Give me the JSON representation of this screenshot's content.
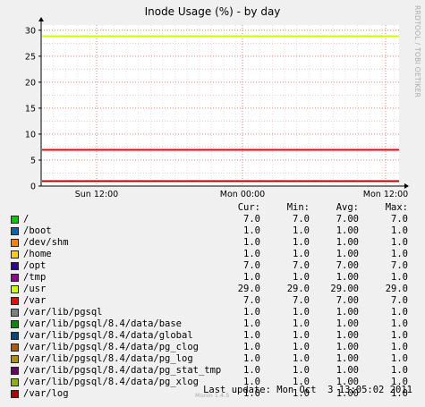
{
  "chart_data": {
    "type": "line",
    "title": "Inode Usage (%) - by day",
    "watermark": "RRDTOOL / TOBI OETIKER",
    "yticks": [
      0,
      5,
      10,
      15,
      20,
      25,
      30
    ],
    "ylim": [
      0,
      31
    ],
    "xticks": [
      "Sun 12:00",
      "Mon 00:00",
      "Mon 12:00"
    ],
    "grid": true,
    "columns": [
      "Cur:",
      "Min:",
      "Avg:",
      "Max:"
    ],
    "series": [
      {
        "name": "/",
        "color": "#00cc00",
        "cur": "7.0",
        "min": "7.0",
        "avg": "7.00",
        "max": "7.0",
        "value": 7.0
      },
      {
        "name": "/boot",
        "color": "#0066b3",
        "cur": "1.0",
        "min": "1.0",
        "avg": "1.00",
        "max": "1.0",
        "value": 1.0
      },
      {
        "name": "/dev/shm",
        "color": "#ff8000",
        "cur": "1.0",
        "min": "1.0",
        "avg": "1.00",
        "max": "1.0",
        "value": 1.0
      },
      {
        "name": "/home",
        "color": "#ffcc00",
        "cur": "1.0",
        "min": "1.0",
        "avg": "1.00",
        "max": "1.0",
        "value": 1.0
      },
      {
        "name": "/opt",
        "color": "#330099",
        "cur": "7.0",
        "min": "7.0",
        "avg": "7.00",
        "max": "7.0",
        "value": 7.0
      },
      {
        "name": "/tmp",
        "color": "#990099",
        "cur": "1.0",
        "min": "1.0",
        "avg": "1.00",
        "max": "1.0",
        "value": 1.0
      },
      {
        "name": "/usr",
        "color": "#ccff00",
        "cur": "29.0",
        "min": "29.0",
        "avg": "29.00",
        "max": "29.0",
        "value": 29.0
      },
      {
        "name": "/var",
        "color": "#ff0000",
        "cur": "7.0",
        "min": "7.0",
        "avg": "7.00",
        "max": "7.0",
        "value": 7.0
      },
      {
        "name": "/var/lib/pgsql",
        "color": "#808080",
        "cur": "1.0",
        "min": "1.0",
        "avg": "1.00",
        "max": "1.0",
        "value": 1.0
      },
      {
        "name": "/var/lib/pgsql/8.4/data/base",
        "color": "#008f00",
        "cur": "1.0",
        "min": "1.0",
        "avg": "1.00",
        "max": "1.0",
        "value": 1.0
      },
      {
        "name": "/var/lib/pgsql/8.4/data/global",
        "color": "#00487d",
        "cur": "1.0",
        "min": "1.0",
        "avg": "1.00",
        "max": "1.0",
        "value": 1.0
      },
      {
        "name": "/var/lib/pgsql/8.4/data/pg_clog",
        "color": "#b35a00",
        "cur": "1.0",
        "min": "1.0",
        "avg": "1.00",
        "max": "1.0",
        "value": 1.0
      },
      {
        "name": "/var/lib/pgsql/8.4/data/pg_log",
        "color": "#b38f00",
        "cur": "1.0",
        "min": "1.0",
        "avg": "1.00",
        "max": "1.0",
        "value": 1.0
      },
      {
        "name": "/var/lib/pgsql/8.4/data/pg_stat_tmp",
        "color": "#6b006b",
        "cur": "1.0",
        "min": "1.0",
        "avg": "1.00",
        "max": "1.0",
        "value": 1.0
      },
      {
        "name": "/var/lib/pgsql/8.4/data/pg_xlog",
        "color": "#8fb300",
        "cur": "1.0",
        "min": "1.0",
        "avg": "1.00",
        "max": "1.0",
        "value": 1.0
      },
      {
        "name": "/var/log",
        "color": "#b30000",
        "cur": "1.0",
        "min": "1.0",
        "avg": "1.00",
        "max": "1.0",
        "value": 1.0
      }
    ]
  },
  "footer": {
    "last_update": "Last update: Mon Oct  3 13:05:02 2011",
    "munin": "Munin 1.4.5"
  }
}
